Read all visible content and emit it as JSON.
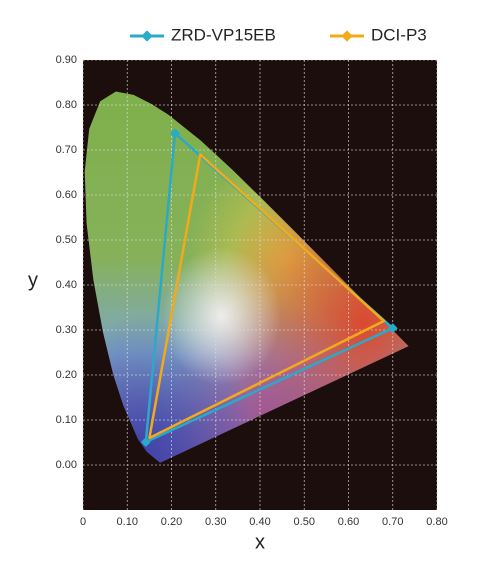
{
  "chart_data": {
    "type": "line",
    "x_label": "x",
    "y_label": "y",
    "xlim": [
      0,
      0.8
    ],
    "ylim": [
      -0.1,
      0.9
    ],
    "xticks": [
      0,
      {
        "value": 0.1,
        "label": "0.10"
      },
      {
        "value": 0.2,
        "label": "0.20"
      },
      {
        "value": 0.3,
        "label": "0.30"
      },
      {
        "value": 0.4,
        "label": "0.40"
      },
      {
        "value": 0.5,
        "label": "0.50"
      },
      {
        "value": 0.6,
        "label": "0.60"
      },
      {
        "value": 0.7,
        "label": "0.70"
      },
      {
        "value": 0.8,
        "label": "0.80"
      }
    ],
    "yticks": [
      {
        "value": 0.9,
        "label": "0.90"
      },
      {
        "value": 0.8,
        "label": "0.80"
      },
      {
        "value": 0.7,
        "label": "0.70"
      },
      {
        "value": 0.6,
        "label": "0.60"
      },
      {
        "value": 0.5,
        "label": "0.50"
      },
      {
        "value": 0.4,
        "label": "0.40"
      },
      {
        "value": 0.3,
        "label": "0.30"
      },
      {
        "value": 0.2,
        "label": "0.20"
      },
      {
        "value": 0.1,
        "label": "0.10"
      },
      {
        "value": 0.0,
        "label": "0.00"
      }
    ],
    "grid": true,
    "legend": "top",
    "series": [
      {
        "name": "ZRD-VP15EB",
        "color": "#2aa9c9",
        "closed": true,
        "marker": "diamond",
        "x": [
          0.208,
          0.7,
          0.142
        ],
        "y": [
          0.737,
          0.304,
          0.051
        ]
      },
      {
        "name": "DCI-P3",
        "color": "#f2aa1a",
        "closed": true,
        "marker": "none",
        "x": [
          0.265,
          0.68,
          0.15
        ],
        "y": [
          0.69,
          0.32,
          0.06
        ]
      }
    ]
  }
}
